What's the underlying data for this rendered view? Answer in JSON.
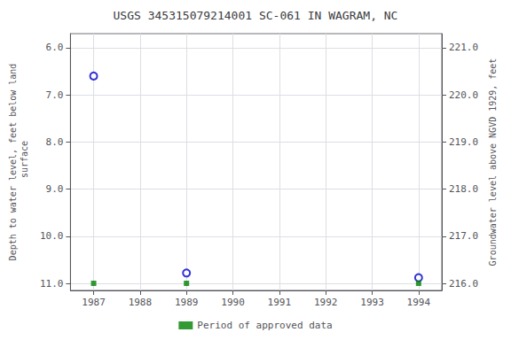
{
  "chart_data": {
    "type": "scatter",
    "title": "USGS 345315079214001 SC-061 IN WAGRAM, NC",
    "ylabel": "Depth to water level, feet below land\n surface",
    "y2label": "Groundwater level above NGVD 1929, feet",
    "x": [
      1987.0,
      1989.0,
      1994.0
    ],
    "series": [
      {
        "values": [
          6.6,
          10.78,
          10.88
        ],
        "color": "#0000cc",
        "marker": "circle-open"
      },
      {
        "name": "Period of approved data",
        "values": [
          11.0,
          11.0,
          11.0
        ],
        "color": "#008000",
        "marker": "square"
      }
    ],
    "xlim": [
      1986.5,
      1994.5
    ],
    "xticks": [
      1987,
      1988,
      1989,
      1990,
      1991,
      1992,
      1993,
      1994
    ],
    "ylim": [
      11.15,
      5.7
    ],
    "yticks": [
      {
        "value": 6,
        "label": "6.0"
      },
      {
        "value": 7,
        "label": "7.0"
      },
      {
        "value": 8,
        "label": "8.0"
      },
      {
        "value": 9,
        "label": "9.0"
      },
      {
        "value": 10,
        "label": "10.0"
      },
      {
        "value": 11,
        "label": "11.0"
      }
    ],
    "y2lim": [
      215.85,
      221.3
    ],
    "y2ticks": [
      {
        "value": 216,
        "label": "216.0"
      },
      {
        "value": 217,
        "label": "217.0"
      },
      {
        "value": 218,
        "label": "218.0"
      },
      {
        "value": 219,
        "label": "219.0"
      },
      {
        "value": 220,
        "label": "220.0"
      },
      {
        "value": 221,
        "label": "221.0"
      }
    ],
    "grid": true,
    "legend": "bottom"
  }
}
